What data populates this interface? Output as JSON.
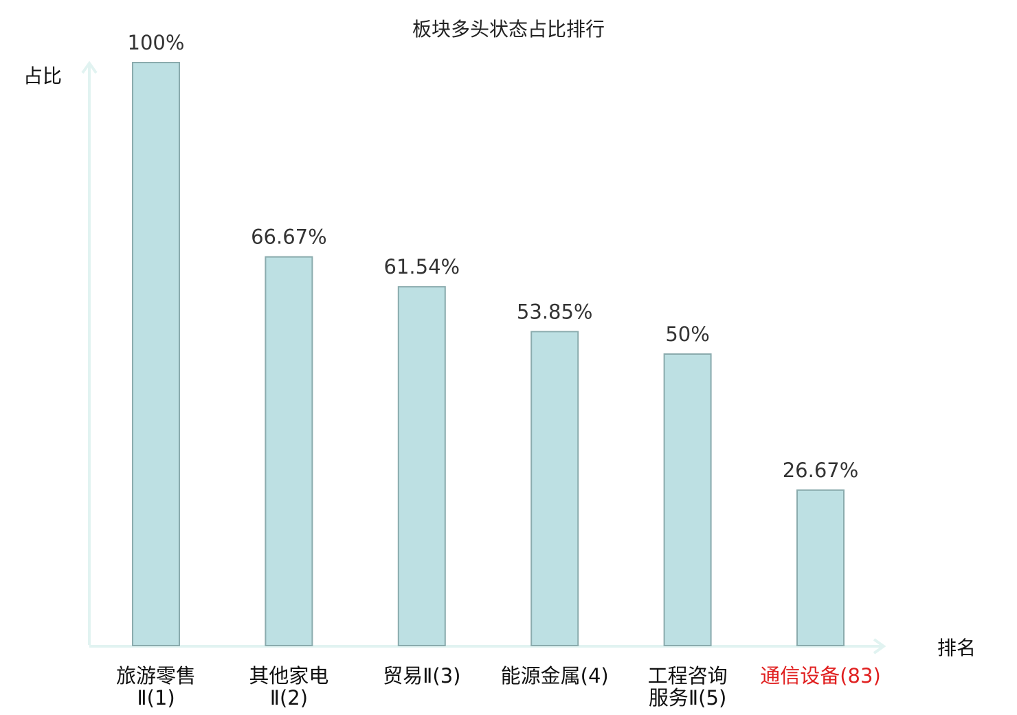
{
  "chart_data": {
    "type": "bar",
    "title": "板块多头状态占比排行",
    "ylabel": "占比",
    "xlabel": "排名",
    "ylim": [
      0,
      100
    ],
    "grid": false,
    "categories": [
      [
        "旅游零售",
        "Ⅱ(1)"
      ],
      [
        "其他家电",
        "Ⅱ(2)"
      ],
      [
        "贸易Ⅱ(3)"
      ],
      [
        "能源金属(4)"
      ],
      [
        "工程咨询",
        "服务Ⅱ(5)"
      ],
      [
        "通信设备(83)"
      ]
    ],
    "values": [
      100,
      66.67,
      61.54,
      53.85,
      50,
      26.67
    ],
    "value_labels": [
      "100%",
      "66.67%",
      "61.54%",
      "53.85%",
      "50%",
      "26.67%"
    ],
    "highlight_index": 5
  },
  "colors": {
    "bar_fill": "#bde0e3",
    "bar_stroke": "#8aabad",
    "axis": "#e1f3f1",
    "label_text": "#111111",
    "highlight_text": "#e02020"
  }
}
